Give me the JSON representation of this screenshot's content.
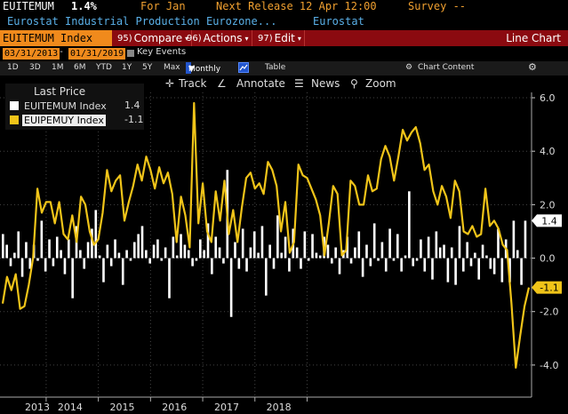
{
  "header": {
    "ticker": "EUITEMUM",
    "value": "1.4%",
    "period": "For Jan",
    "next_release": "Next Release 12 Apr 12:00",
    "survey": "Survey --",
    "description": "Eurostat Industrial Production Eurozone...",
    "source": "Eurostat"
  },
  "toolbar": {
    "ticker_field": "EUITEMUM Index",
    "compare": "Compare",
    "compare_prefix": "95)",
    "actions": "Actions",
    "actions_prefix": "96)",
    "edit": "Edit",
    "edit_prefix": "97)",
    "chart_type": "Line Chart"
  },
  "date_range": {
    "start": "03/31/2013",
    "end": "01/31/2019",
    "key_events": "Key Events"
  },
  "periods": [
    "1D",
    "3D",
    "1M",
    "6M",
    "YTD",
    "1Y",
    "5Y",
    "Max"
  ],
  "frequency": "Monthly",
  "table_label": "Table",
  "chart_content": "Chart Content",
  "tools": {
    "track": "Track",
    "annotate": "Annotate",
    "news": "News",
    "zoom": "Zoom"
  },
  "legend": {
    "title": "Last Price",
    "items": [
      {
        "label": "EUITEMUM Index",
        "value": "1.4",
        "color": "#ffffff"
      },
      {
        "label": "EUIPEMUY Index",
        "value": "-1.1",
        "color": "#f0c419"
      }
    ]
  },
  "chart_data": {
    "type": "bar+line",
    "x_labels": [
      "2013",
      "2014",
      "2015",
      "2016",
      "2017",
      "2018"
    ],
    "yticks": [
      "6.0",
      "4.0",
      "2.0",
      "0.0",
      "-2.0",
      "-4.0"
    ],
    "ylim": [
      -5.2,
      6.2
    ],
    "series": [
      {
        "name": "EUITEMUM Index",
        "type": "bar",
        "color": "#ffffff",
        "values": [
          0.9,
          0.5,
          -0.3,
          0.2,
          1.0,
          -0.7,
          0.6,
          -0.4,
          0.5,
          -0.1,
          1.4,
          -0.5,
          0.7,
          -0.3,
          0.8,
          0.3,
          -0.6,
          0.7,
          -1.5,
          1.2,
          0.3,
          -0.4,
          0.6,
          1.1,
          1.8,
          0.1,
          -0.9,
          0.5,
          -0.3,
          0.7,
          0.2,
          -1.0,
          0.3,
          -0.1,
          0.6,
          0.9,
          1.2,
          0.3,
          -0.2,
          0.5,
          0.7,
          -0.1,
          0.4,
          -1.5,
          0.8,
          0.1,
          0.9,
          0.5,
          0.3,
          -0.3,
          -0.1,
          0.7,
          0.3,
          1.3,
          -0.6,
          0.8,
          0.4,
          -0.2,
          3.3,
          -2.2,
          0.6,
          -0.4,
          1.1,
          -0.5,
          0.4,
          1.0,
          0.2,
          1.2,
          -1.4,
          0.5,
          -0.4,
          1.6,
          0.2,
          0.8,
          -0.5,
          1.1,
          0.4,
          -0.4,
          1.0,
          -0.1,
          0.9,
          0.2,
          0.1,
          0.8,
          0.5,
          -0.2,
          0.4,
          -0.6,
          0.3,
          0.8,
          -0.2,
          0.4,
          1.0,
          -0.7,
          0.5,
          -0.3,
          1.3,
          -0.1,
          0.6,
          -0.5,
          1.1,
          -0.1,
          0.9,
          -0.5,
          0.1,
          2.5,
          -0.3,
          -0.1,
          0.7,
          -0.5,
          0.8,
          -0.8,
          1.0,
          0.4,
          0.5,
          -0.9,
          0.4,
          -1.0,
          1.2,
          -0.5,
          0.6,
          -0.3,
          0.2,
          -0.8,
          0.5,
          0.1,
          -0.4,
          -0.6,
          1.1,
          -0.9,
          0.7,
          -0.9,
          1.4,
          0.3,
          -1.0,
          1.4
        ]
      },
      {
        "name": "EUIPEMUY Index",
        "type": "line",
        "color": "#f0c419",
        "values": [
          -1.7,
          -0.7,
          -1.2,
          -0.6,
          -1.9,
          -1.8,
          -1.0,
          0.0,
          2.6,
          1.7,
          2.1,
          2.1,
          1.3,
          2.1,
          0.9,
          0.7,
          1.6,
          0.6,
          2.3,
          2.0,
          1.0,
          0.5,
          0.7,
          1.7,
          3.3,
          2.5,
          2.9,
          3.1,
          1.4,
          2.1,
          2.7,
          3.5,
          2.9,
          3.8,
          3.3,
          2.6,
          3.4,
          2.8,
          3.2,
          2.4,
          0.6,
          2.3,
          1.6,
          0.4,
          5.8,
          1.3,
          2.8,
          1.0,
          0.6,
          2.5,
          1.4,
          2.9,
          0.9,
          1.8,
          0.6,
          1.9,
          3.0,
          3.2,
          2.6,
          2.8,
          2.4,
          3.6,
          3.3,
          2.7,
          1.0,
          2.1,
          0.2,
          0.6,
          3.5,
          3.1,
          3.0,
          2.6,
          2.2,
          1.6,
          0.1,
          1.3,
          2.7,
          2.4,
          0.1,
          0.3,
          2.9,
          2.7,
          2.0,
          2.0,
          3.1,
          2.5,
          2.6,
          3.7,
          4.2,
          3.8,
          2.9,
          3.8,
          4.8,
          4.4,
          4.7,
          4.9,
          4.3,
          3.3,
          3.5,
          2.5,
          2.0,
          2.7,
          2.3,
          1.5,
          2.9,
          2.5,
          1.0,
          0.9,
          1.2,
          0.8,
          0.9,
          2.6,
          1.2,
          1.4,
          1.1,
          0.5,
          0.3,
          -1.7,
          -4.1,
          -2.9,
          -1.8,
          -1.1
        ]
      }
    ],
    "tags": [
      {
        "label": "1.4",
        "value": 1.4
      },
      {
        "label": "-1.1",
        "value": -1.1
      }
    ]
  }
}
